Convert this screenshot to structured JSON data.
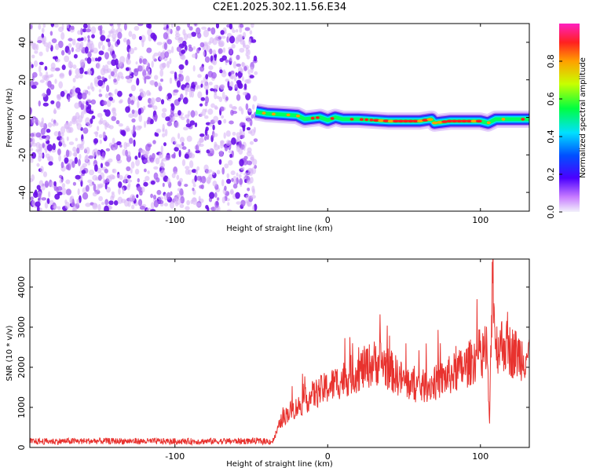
{
  "title": "C2E1.2025.302.11.56.E34",
  "colors": {
    "noise_purple": "#8a2be2",
    "snr_line": "#e8322e",
    "axis": "#000000",
    "background": "#ffffff"
  },
  "chart_data": [
    {
      "type": "heatmap",
      "name": "spectrogram",
      "title": "C2E1.2025.302.11.56.E34",
      "xlabel": "Height of straight line (km)",
      "ylabel": "Frequency (Hz)",
      "xlim": [
        -195,
        132
      ],
      "ylim": [
        -50,
        50
      ],
      "xticks": [
        -100,
        0,
        100
      ],
      "xtick_labels": [
        "-100",
        "0",
        "100"
      ],
      "yticks": [
        -40,
        -20,
        0,
        20,
        40
      ],
      "ytick_labels": [
        "-40",
        "-20",
        "0",
        "20",
        "40"
      ],
      "noise_region_x": [
        -195,
        -47
      ],
      "signal_onset_x": -47,
      "signal_ridge": {
        "x": [
          -47,
          -40,
          -30,
          -20,
          -15,
          -5,
          0,
          5,
          10,
          20,
          40,
          60,
          68,
          70,
          80,
          100,
          105,
          110,
          132
        ],
        "freq": [
          3,
          2,
          1.5,
          1,
          -1,
          0,
          -1.5,
          0,
          -1,
          -1,
          -2,
          -2,
          -1,
          -3,
          -2,
          -2,
          -3,
          -1,
          -1
        ]
      },
      "colorbar": {
        "label": "Normalized spectral amplitude",
        "range": [
          0,
          1
        ],
        "ticks": [
          0.0,
          0.2,
          0.4,
          0.6,
          0.8
        ],
        "tick_labels": [
          "0.0",
          "0.2",
          "0.4",
          "0.6",
          "0.8"
        ]
      },
      "grid": false
    },
    {
      "type": "line",
      "name": "snr",
      "xlabel": "Height of straight line (km)",
      "ylabel": "SNR (10 * v/v)",
      "xlim": [
        -195,
        132
      ],
      "ylim": [
        0,
        4700
      ],
      "xticks": [
        -100,
        0,
        100
      ],
      "xtick_labels": [
        "-100",
        "0",
        "100"
      ],
      "yticks": [
        0,
        1000,
        2000,
        3000,
        4000
      ],
      "ytick_labels": [
        "0",
        "1000",
        "2000",
        "3000",
        "4000"
      ],
      "series": [
        {
          "color": "#e8322e",
          "x": [
            -195,
            -150,
            -100,
            -50,
            -36,
            -30,
            -25,
            -20,
            -10,
            0,
            10,
            20,
            30,
            35,
            40,
            50,
            60,
            70,
            80,
            90,
            100,
            104,
            106,
            108,
            110,
            115,
            120,
            125,
            132
          ],
          "y": [
            150,
            160,
            150,
            160,
            150,
            700,
            900,
            1000,
            1300,
            1500,
            1700,
            1900,
            2100,
            2150,
            1950,
            1650,
            1500,
            1600,
            1800,
            2000,
            2350,
            2500,
            600,
            4700,
            2500,
            2600,
            2400,
            2300,
            2300
          ]
        }
      ],
      "grid": false
    }
  ]
}
